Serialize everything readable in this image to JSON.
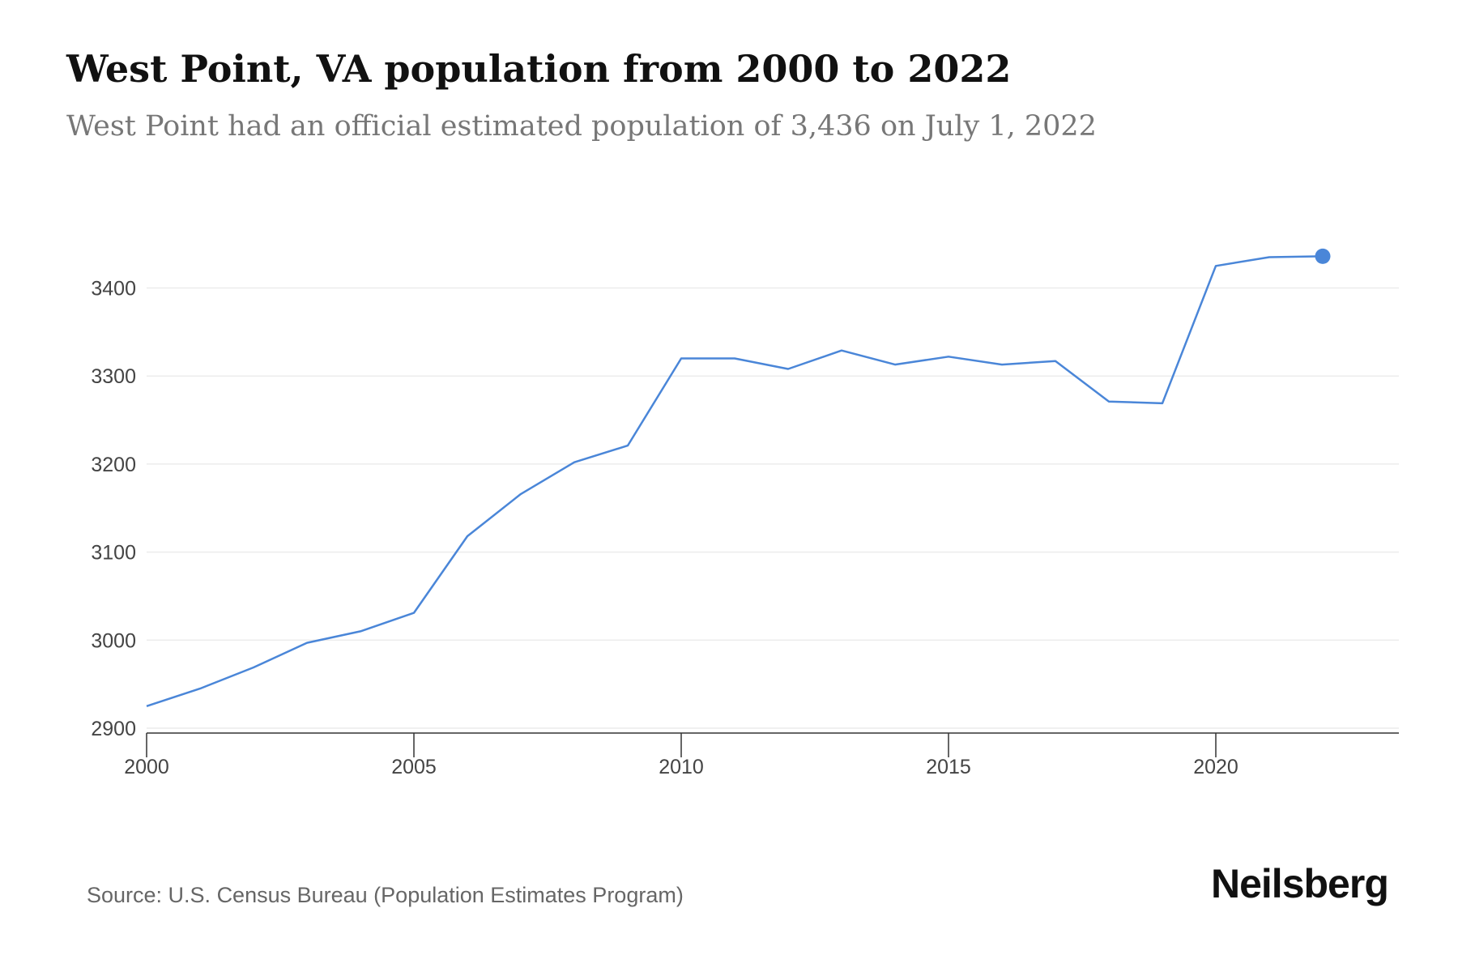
{
  "header": {
    "title": "West Point, VA population from 2000 to 2022",
    "subtitle": "West Point had an official estimated population of 3,436 on July 1, 2022"
  },
  "footer": {
    "source": "Source: U.S. Census Bureau (Population Estimates Program)",
    "brand": "Neilsberg"
  },
  "colors": {
    "line": "#4a86d8",
    "grid": "#ececec",
    "axis": "#333333"
  },
  "chart_data": {
    "type": "line",
    "title": "West Point, VA population from 2000 to 2022",
    "subtitle": "West Point had an official estimated population of 3,436 on July 1, 2022",
    "xlabel": "",
    "ylabel": "",
    "x": [
      2000,
      2001,
      2002,
      2003,
      2004,
      2005,
      2006,
      2007,
      2008,
      2009,
      2010,
      2011,
      2012,
      2013,
      2014,
      2015,
      2016,
      2017,
      2018,
      2019,
      2020,
      2021,
      2022
    ],
    "series": [
      {
        "values": [
          2925,
          2945,
          2969,
          2997,
          3010,
          3031,
          3118,
          3166,
          3202,
          3221,
          3320,
          3320,
          3308,
          3329,
          3313,
          3322,
          3313,
          3317,
          3271,
          3269,
          3425,
          3435,
          3436
        ]
      }
    ],
    "xlim": [
      2000,
      2023.4
    ],
    "ylim": [
      2900,
      3436
    ],
    "xticks": [
      2000,
      2005,
      2010,
      2015,
      2020
    ],
    "yticks": [
      2900,
      3000,
      3100,
      3200,
      3300,
      3400
    ],
    "grid": "horizontal",
    "highlight_last_point": true
  }
}
